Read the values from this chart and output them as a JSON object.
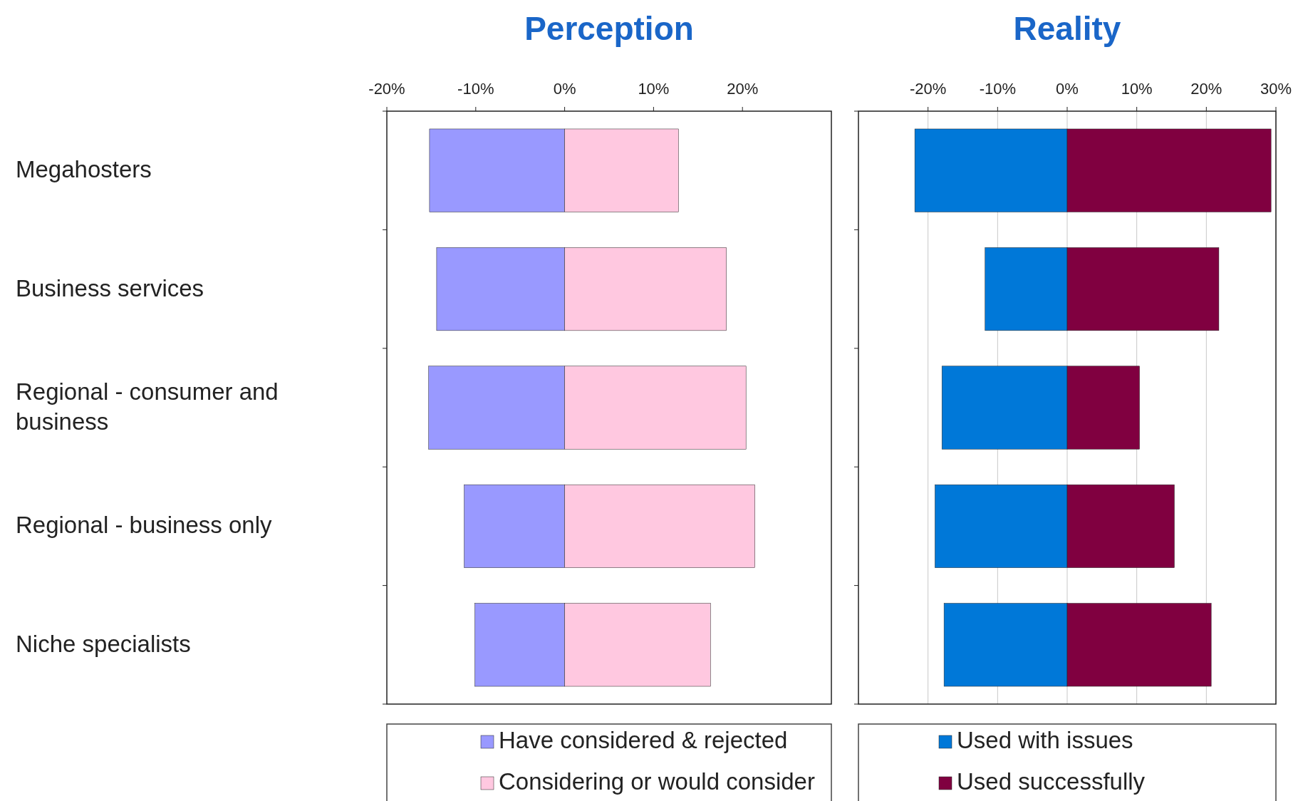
{
  "chart_data": [
    {
      "type": "bar",
      "title": "Perception",
      "orientation": "horizontal",
      "stacked": true,
      "categories": [
        "Megahosters",
        "Business services",
        "Regional - consumer and business",
        "Regional - business only",
        "Niche specialists"
      ],
      "series": [
        {
          "name": "Have considered & rejected",
          "color": "#9999ff",
          "values": [
            -15.2,
            -14.4,
            -15.3,
            -11.3,
            -10.1
          ]
        },
        {
          "name": "Considering or would consider",
          "color": "#ffc8e0",
          "values": [
            12.8,
            18.2,
            20.4,
            21.4,
            16.4
          ]
        }
      ],
      "xlim": [
        -20,
        30
      ],
      "xticks": [
        {
          "value": -20,
          "label": "-20%"
        },
        {
          "value": -10,
          "label": "-10%"
        },
        {
          "value": 0,
          "label": "0%"
        },
        {
          "value": 10,
          "label": "10%"
        },
        {
          "value": 20,
          "label": "20%"
        }
      ],
      "grid": false,
      "legend": "bottom"
    },
    {
      "type": "bar",
      "title": "Reality",
      "orientation": "horizontal",
      "stacked": true,
      "categories": [
        null,
        null,
        null,
        null,
        null
      ],
      "series": [
        {
          "name": "Used with issues",
          "color": "#0078d8",
          "values": [
            -21.9,
            -11.8,
            -18,
            -19,
            -17.7
          ]
        },
        {
          "name": "Used successfully",
          "color": "#800040",
          "values": [
            29.3,
            21.8,
            10.4,
            15.4,
            20.7
          ]
        }
      ],
      "xlim": [
        -30,
        30
      ],
      "xticks": [
        {
          "value": -20,
          "label": "-20%"
        },
        {
          "value": -10,
          "label": "-10%"
        },
        {
          "value": 0,
          "label": "0%"
        },
        {
          "value": 10,
          "label": "10%"
        },
        {
          "value": 20,
          "label": "20%"
        },
        {
          "value": 30,
          "label": "30%"
        }
      ],
      "grid": "x",
      "legend": "bottom",
      "tick_labels": "x"
    }
  ]
}
